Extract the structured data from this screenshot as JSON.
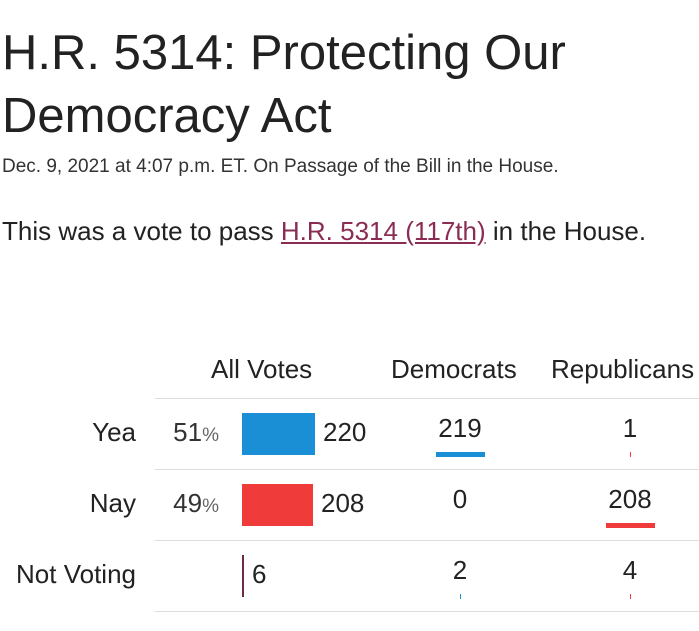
{
  "title": "H.R. 5314: Protecting Our Democracy Act",
  "subtitle": "Dec. 9, 2021 at 4:07 p.m. ET. On Passage of the Bill in the House.",
  "intro": {
    "before": "This was a vote to pass ",
    "link": "H.R. 5314 (117th)",
    "after": " in the House."
  },
  "columns": {
    "all_votes": "All Votes",
    "democrats": "Democrats",
    "republicans": "Republicans"
  },
  "colors": {
    "yea": "#1a8fd6",
    "nay": "#ef3b39",
    "democrat": "#1a8fd6",
    "republican": "#ef3b39",
    "link": "#8a2c54"
  },
  "rows": [
    {
      "label": "Yea",
      "percent": "51",
      "percent_symbol": "%",
      "total": "220",
      "democrats": "219",
      "republicans": "1",
      "total_share": 0.51
    },
    {
      "label": "Nay",
      "percent": "49",
      "percent_symbol": "%",
      "total": "208",
      "democrats": "0",
      "republicans": "208",
      "total_share": 0.49
    },
    {
      "label": "Not Voting",
      "percent": "",
      "percent_symbol": "",
      "total": "6",
      "democrats": "2",
      "republicans": "4",
      "total_share": 0.014
    }
  ]
}
